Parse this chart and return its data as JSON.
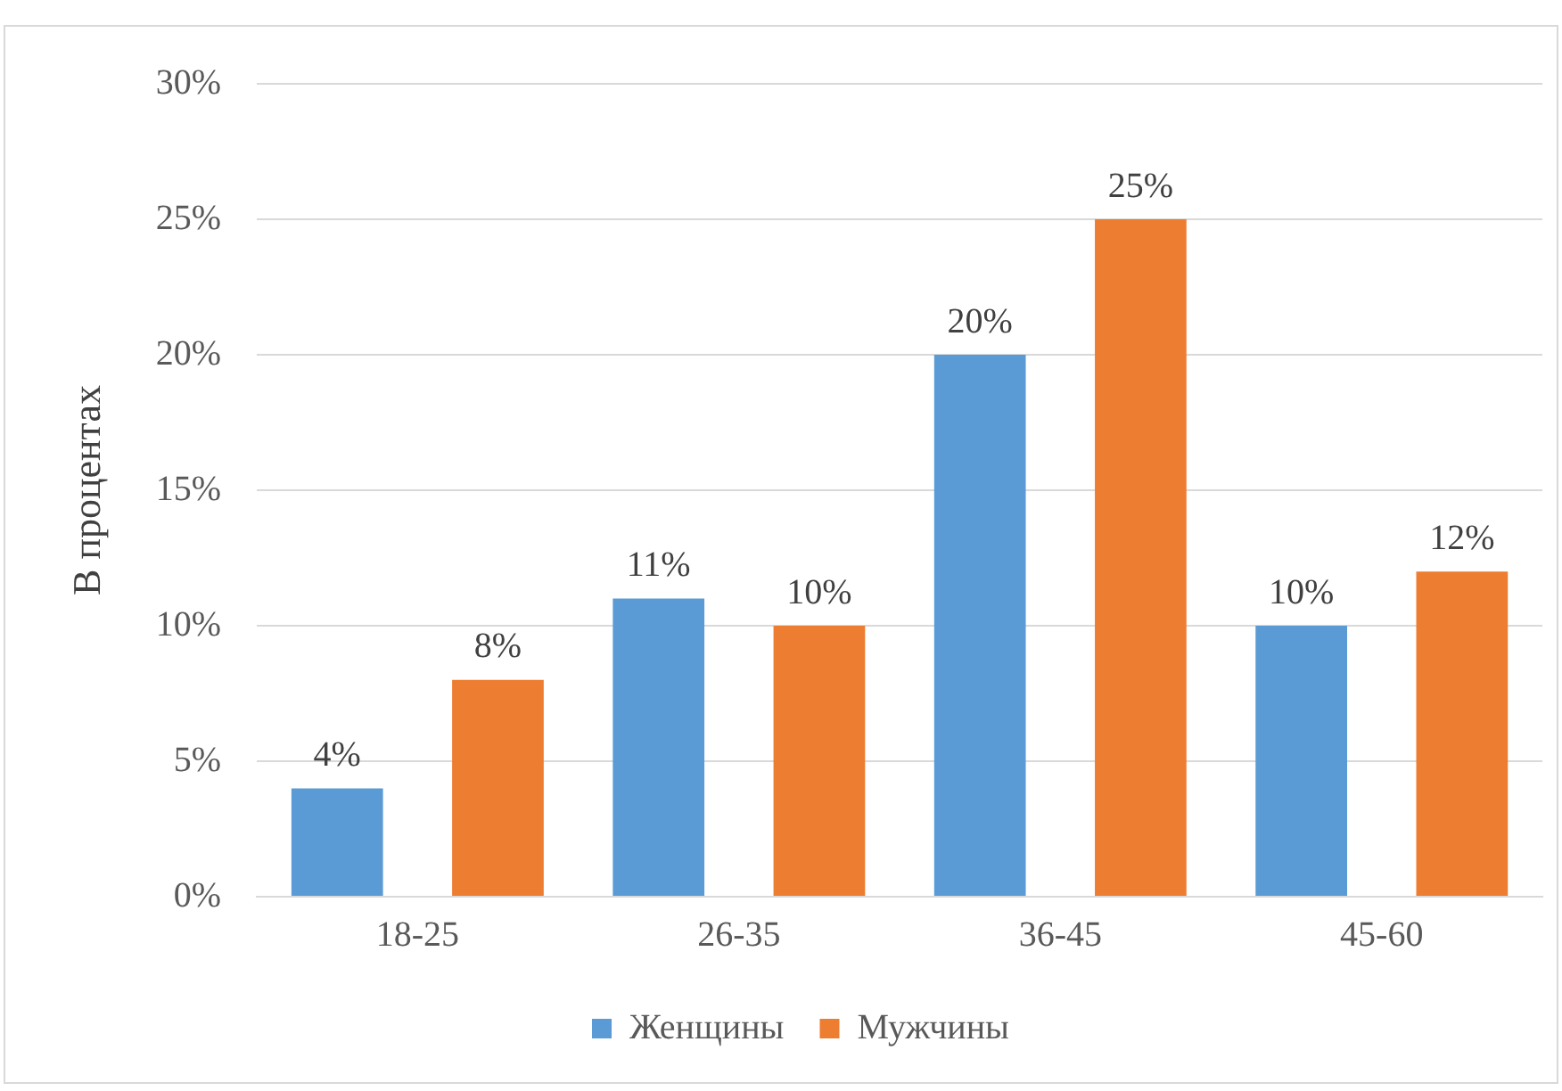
{
  "chart_data": {
    "type": "bar",
    "ylabel": "В процентах",
    "categories": [
      "18-25",
      "26-35",
      "36-45",
      "45-60"
    ],
    "series": [
      {
        "name": "Женщины",
        "color": "#5b9bd5",
        "values": [
          4,
          11,
          20,
          10
        ],
        "value_labels": [
          "4%",
          "11%",
          "20%",
          "10%"
        ]
      },
      {
        "name": "Мужчины",
        "color": "#ed7d31",
        "values": [
          8,
          10,
          25,
          12
        ],
        "value_labels": [
          "8%",
          "10%",
          "25%",
          "12%"
        ]
      }
    ],
    "ylim": [
      0,
      30
    ],
    "yticks": [
      {
        "value": 0,
        "label": "0%"
      },
      {
        "value": 5,
        "label": "5%"
      },
      {
        "value": 10,
        "label": "10%"
      },
      {
        "value": 15,
        "label": "15%"
      },
      {
        "value": 20,
        "label": "20%"
      },
      {
        "value": 25,
        "label": "25%"
      },
      {
        "value": 30,
        "label": "30%"
      }
    ],
    "grid": "y",
    "legend": "bottom"
  }
}
